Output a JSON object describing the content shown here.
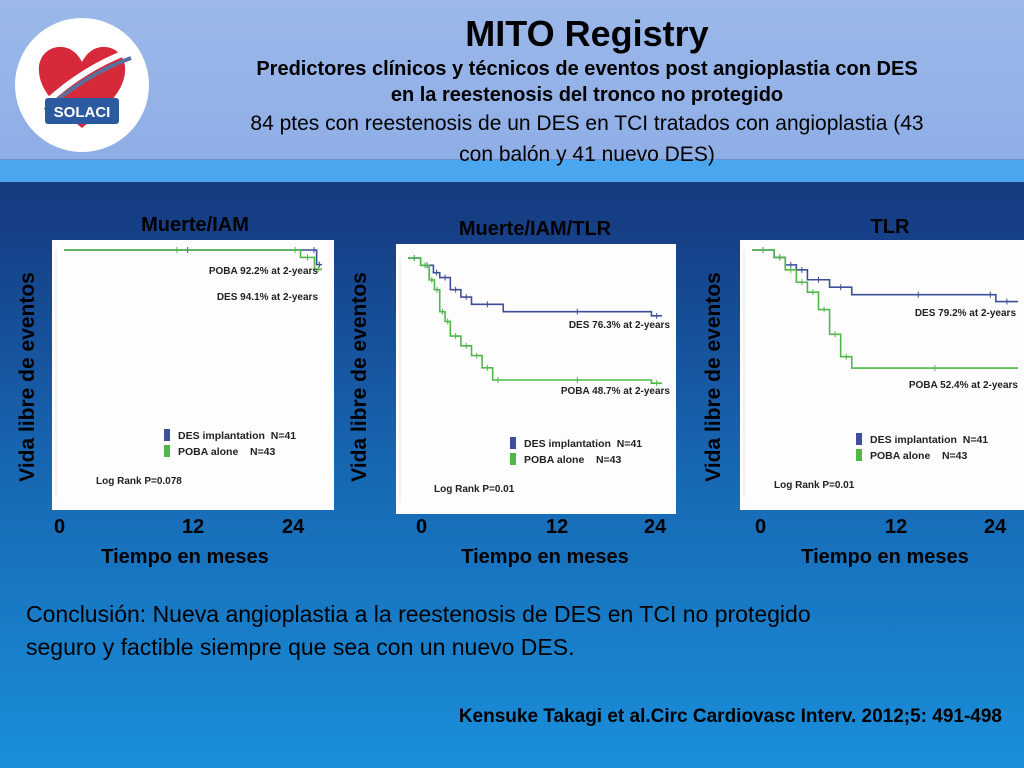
{
  "header": {
    "title": "MITO Registry",
    "subtitle_line1": "Predictores clínicos y técnicos de eventos post angioplastia con DES",
    "subtitle_line2": "en la reestenosis del tronco no protegido",
    "description_line1": "84 ptes con reestenosis de un DES en TCI tratados con angioplastia (43",
    "description_line2": "con balón y 41 nuevo DES)",
    "logo_text": "SOLACI"
  },
  "colors": {
    "des_series": "#3f4e99",
    "poba_series": "#4fb848",
    "header_bg": "#96b4e8",
    "stripe": "#4aa6ee"
  },
  "chart_data": [
    {
      "type": "line",
      "title": "Muerte/IAM",
      "xlabel": "Tiempo en meses",
      "ylabel": "Vida libre de eventos",
      "x_ticks": [
        "0",
        "12",
        "24"
      ],
      "xlim": [
        0,
        24
      ],
      "ylim": [
        0,
        1
      ],
      "annotations": [
        "POBA 92.2% at 2-years",
        "DES 94.1% at 2-years",
        "Log Rank P=0.078"
      ],
      "legend": [
        "DES implantation  N=41",
        "POBA alone    N=43"
      ],
      "series": [
        {
          "name": "DES implantation",
          "x": [
            0,
            23,
            23.5,
            24
          ],
          "y": [
            1.0,
            1.0,
            0.941,
            0.941
          ]
        },
        {
          "name": "POBA alone",
          "x": [
            0,
            21,
            22,
            23.3,
            24
          ],
          "y": [
            1.0,
            1.0,
            0.97,
            0.922,
            0.922
          ]
        }
      ]
    },
    {
      "type": "line",
      "title": "Muerte/IAM/TLR",
      "xlabel": "Tiempo en meses",
      "ylabel": "Vida libre de eventos",
      "x_ticks": [
        "0",
        "12",
        "24"
      ],
      "xlim": [
        0,
        24
      ],
      "ylim": [
        0,
        1
      ],
      "annotations": [
        "DES 76.3% at 2-years",
        "POBA 48.7% at 2-years",
        "Log Rank P=0.01"
      ],
      "legend": [
        "DES implantation  N=41",
        "POBA alone    N=43"
      ],
      "series": [
        {
          "name": "DES implantation",
          "x": [
            0,
            1.2,
            2.4,
            3,
            4,
            5,
            6,
            9,
            23,
            24
          ],
          "y": [
            1.0,
            0.97,
            0.94,
            0.92,
            0.87,
            0.84,
            0.81,
            0.78,
            0.763,
            0.763
          ]
        },
        {
          "name": "POBA alone",
          "x": [
            0,
            1.2,
            2,
            2.5,
            3,
            3.5,
            4,
            5,
            6,
            7,
            8,
            9,
            23,
            24
          ],
          "y": [
            1.0,
            0.97,
            0.91,
            0.87,
            0.78,
            0.74,
            0.68,
            0.64,
            0.6,
            0.55,
            0.5,
            0.5,
            0.487,
            0.487
          ]
        }
      ]
    },
    {
      "type": "line",
      "title": "TLR",
      "xlabel": "Tiempo en meses",
      "ylabel": "Vida libre de eventos",
      "x_ticks": [
        "0",
        "12",
        "24"
      ],
      "xlim": [
        0,
        24
      ],
      "ylim": [
        0,
        1
      ],
      "annotations": [
        "DES 79.2% at 2-years",
        "POBA 52.4% at 2-years",
        "Log Rank P=0.01"
      ],
      "legend": [
        "DES implantation  N=41",
        "POBA alone    N=43"
      ],
      "series": [
        {
          "name": "DES implantation",
          "x": [
            0,
            2,
            3,
            4,
            5,
            7,
            9,
            21,
            22,
            24
          ],
          "y": [
            1.0,
            0.97,
            0.94,
            0.92,
            0.88,
            0.85,
            0.82,
            0.82,
            0.792,
            0.792
          ]
        },
        {
          "name": "POBA alone",
          "x": [
            0,
            2,
            3,
            4,
            5,
            6,
            7,
            8,
            9,
            24
          ],
          "y": [
            1.0,
            0.97,
            0.92,
            0.87,
            0.83,
            0.76,
            0.66,
            0.57,
            0.524,
            0.524
          ]
        }
      ]
    }
  ],
  "conclusion_line1": "Conclusión: Nueva angioplastia a la reestenosis de DES en TCI no protegido",
  "conclusion_line2": "seguro y factible siempre que sea con un nuevo DES.",
  "citation": "Kensuke Takagi et al.Circ Cardiovasc Interv. 2012;5: 491-498"
}
